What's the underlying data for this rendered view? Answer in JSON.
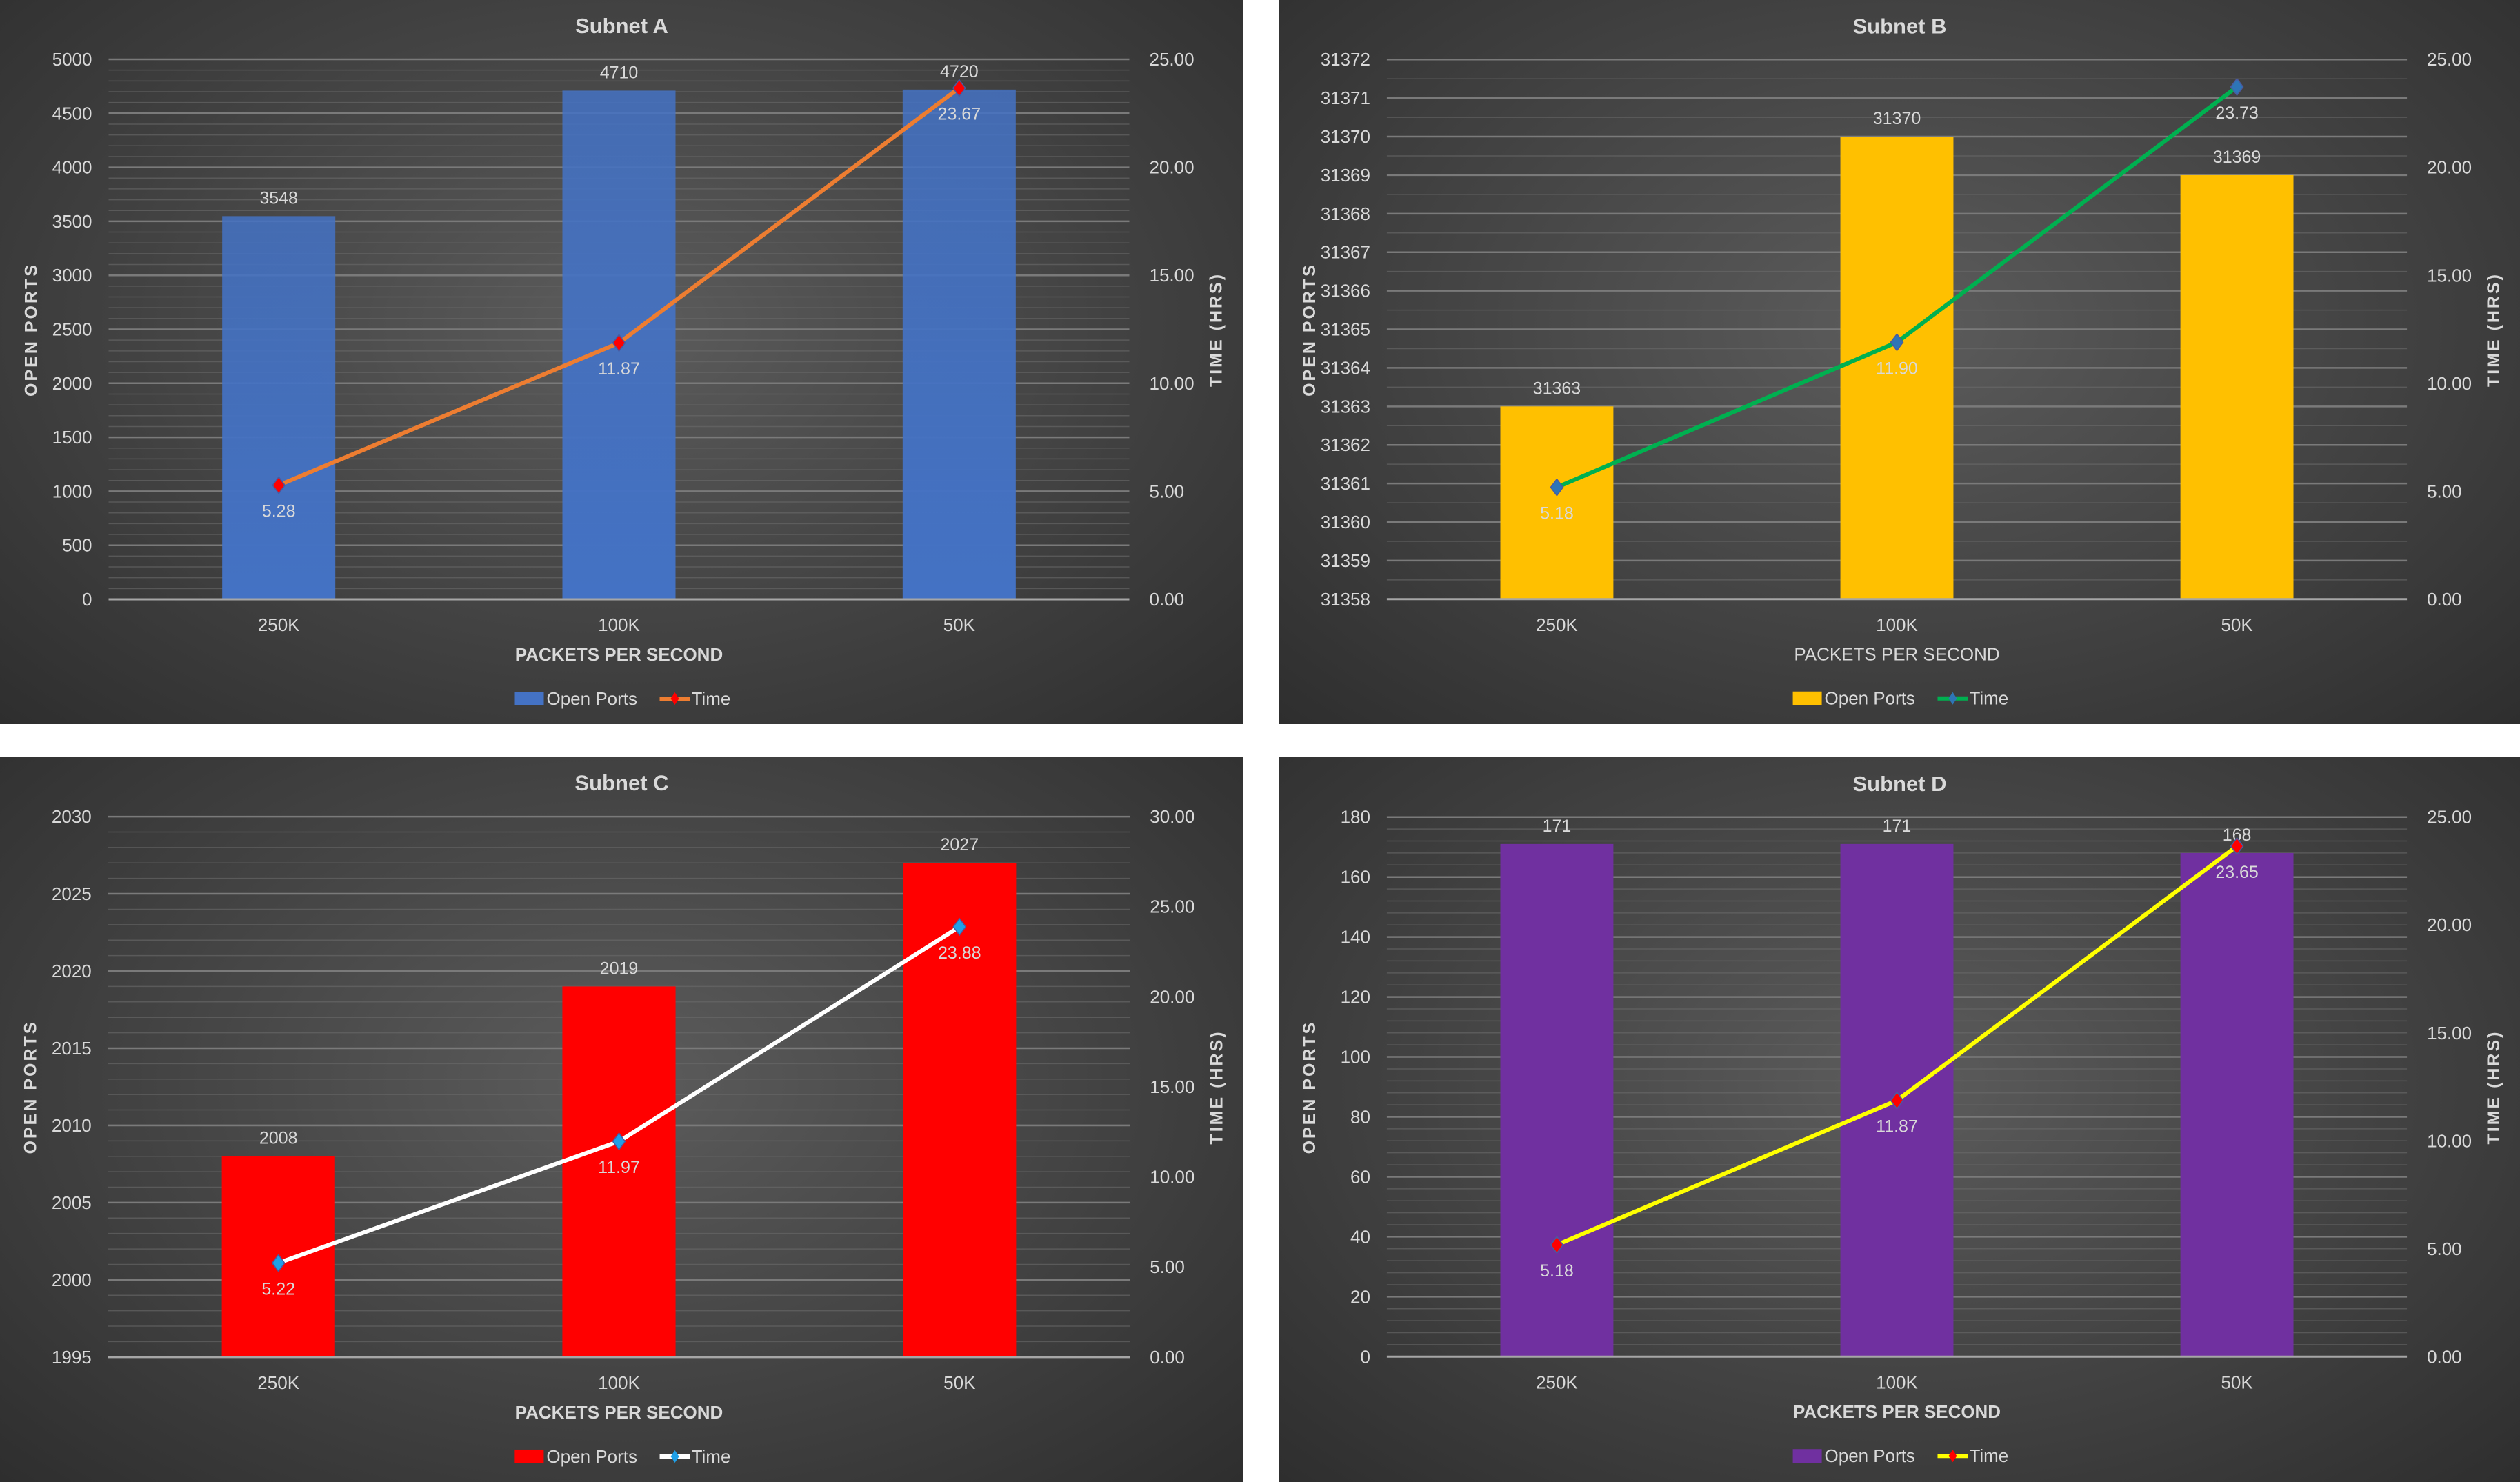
{
  "chart_data": [
    {
      "type": "bar+line",
      "title": "Subnet A",
      "xlabel": "PACKETS PER SECOND",
      "ylabel": "OPEN PORTS",
      "y2label": "TIME (HRS)",
      "categories": [
        "250K",
        "100K",
        "50K"
      ],
      "series": [
        {
          "name": "Open Ports",
          "type": "bar",
          "axis": "left",
          "values": [
            3548,
            4710,
            4720
          ],
          "labels": [
            "3548",
            "4710",
            "4720"
          ],
          "color": "#4472c4"
        },
        {
          "name": "Time",
          "type": "line",
          "axis": "right",
          "values": [
            5.28,
            11.87,
            23.67
          ],
          "labels": [
            "5.28",
            "11.87",
            "23.67"
          ],
          "color": "#ed7d31",
          "marker_color": "#ff0000"
        }
      ],
      "ylim": [
        0,
        5000
      ],
      "y2lim": [
        0,
        25
      ],
      "y_ticks": [
        "0",
        "500",
        "1000",
        "1500",
        "2000",
        "2500",
        "3000",
        "3500",
        "4000",
        "4500",
        "5000"
      ],
      "y2_ticks": [
        "0.00",
        "5.00",
        "10.00",
        "15.00",
        "20.00",
        "25.00"
      ],
      "grid": true,
      "legend": "bottom"
    },
    {
      "type": "bar+line",
      "title": "Subnet B",
      "xlabel": "PACKETS PER SECOND",
      "ylabel": "OPEN PORTS",
      "y2label": "TIME (HRS)",
      "categories": [
        "250K",
        "100K",
        "50K"
      ],
      "series": [
        {
          "name": "Open Ports",
          "type": "bar",
          "axis": "left",
          "values": [
            31363,
            31370,
            31369
          ],
          "labels": [
            "31363",
            "31370",
            "31369"
          ],
          "color": "#ffc000"
        },
        {
          "name": "Time",
          "type": "line",
          "axis": "right",
          "values": [
            5.18,
            11.9,
            23.73
          ],
          "labels": [
            "5.18",
            "11.90",
            "23.73"
          ],
          "color": "#00b050",
          "marker_color": "#2e75b6"
        }
      ],
      "ylim": [
        31358,
        31372
      ],
      "y2lim": [
        0,
        25
      ],
      "y_ticks": [
        "31358",
        "31359",
        "31360",
        "31361",
        "31362",
        "31363",
        "31364",
        "31365",
        "31366",
        "31367",
        "31368",
        "31369",
        "31370",
        "31371",
        "31372"
      ],
      "y2_ticks": [
        "0.00",
        "5.00",
        "10.00",
        "15.00",
        "20.00",
        "25.00"
      ],
      "grid": true,
      "legend": "bottom"
    },
    {
      "type": "bar+line",
      "title": "Subnet C",
      "xlabel": "PACKETS PER SECOND",
      "ylabel": "OPEN PORTS",
      "y2label": "TIME (HRS)",
      "categories": [
        "250K",
        "100K",
        "50K"
      ],
      "series": [
        {
          "name": "Open Ports",
          "type": "bar",
          "axis": "left",
          "values": [
            2008,
            2019,
            2027
          ],
          "labels": [
            "2008",
            "2019",
            "2027"
          ],
          "color": "#ff0000"
        },
        {
          "name": "Time",
          "type": "line",
          "axis": "right",
          "values": [
            5.22,
            11.97,
            23.88
          ],
          "labels": [
            "5.22",
            "11.97",
            "23.88"
          ],
          "color": "#ffffff",
          "marker_color": "#1fa0e8"
        }
      ],
      "ylim": [
        1995,
        2030
      ],
      "y2lim": [
        0,
        30
      ],
      "y_ticks": [
        "1995",
        "2000",
        "2005",
        "2010",
        "2015",
        "2020",
        "2025",
        "2030"
      ],
      "y2_ticks": [
        "0.00",
        "5.00",
        "10.00",
        "15.00",
        "20.00",
        "25.00",
        "30.00"
      ],
      "grid": true,
      "legend": "bottom"
    },
    {
      "type": "bar+line",
      "title": "Subnet D",
      "xlabel": "PACKETS PER SECOND",
      "ylabel": "OPEN PORTS",
      "y2label": "TIME (HRS)",
      "categories": [
        "250K",
        "100K",
        "50K"
      ],
      "series": [
        {
          "name": "Open Ports",
          "type": "bar",
          "axis": "left",
          "values": [
            171,
            171,
            168
          ],
          "labels": [
            "171",
            "171",
            "168"
          ],
          "color": "#7030a0"
        },
        {
          "name": "Time",
          "type": "line",
          "axis": "right",
          "values": [
            5.18,
            11.87,
            23.65
          ],
          "labels": [
            "5.18",
            "11.87",
            "23.65"
          ],
          "color": "#ffff00",
          "marker_color": "#ff0000"
        }
      ],
      "ylim": [
        0,
        180
      ],
      "y2lim": [
        0,
        25
      ],
      "y_ticks": [
        "0",
        "20",
        "40",
        "60",
        "80",
        "100",
        "120",
        "140",
        "160",
        "180"
      ],
      "y2_ticks": [
        "0.00",
        "5.00",
        "10.00",
        "15.00",
        "20.00",
        "25.00"
      ],
      "grid": true,
      "legend": "bottom"
    }
  ]
}
